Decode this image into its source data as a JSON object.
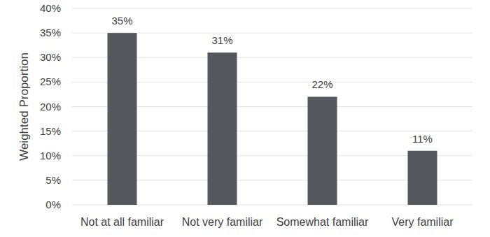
{
  "chart_data": {
    "type": "bar",
    "ylabel": "Weighted Proportion",
    "categories": [
      "Not at all familiar",
      "Not very familiar",
      "Somewhat familiar",
      "Very familiar"
    ],
    "values": [
      35,
      31,
      22,
      11
    ],
    "value_labels": [
      "35%",
      "31%",
      "22%",
      "11%"
    ],
    "color": "#54575c",
    "ylim": [
      0,
      40
    ],
    "yticks": [
      {
        "value": 0,
        "label": "0%"
      },
      {
        "value": 5,
        "label": "5%"
      },
      {
        "value": 10,
        "label": "10%"
      },
      {
        "value": 15,
        "label": "15%"
      },
      {
        "value": 20,
        "label": "20%"
      },
      {
        "value": 25,
        "label": "25%"
      },
      {
        "value": 30,
        "label": "30%"
      },
      {
        "value": 35,
        "label": "35%"
      },
      {
        "value": 40,
        "label": "40%"
      }
    ],
    "grid": true,
    "data_labels": true
  }
}
